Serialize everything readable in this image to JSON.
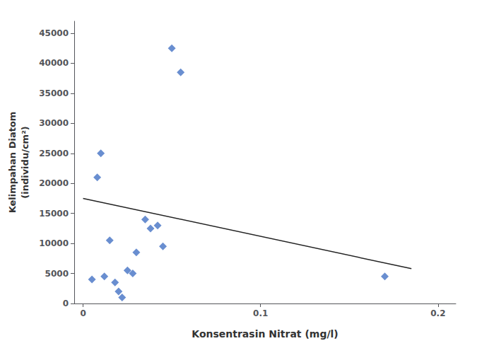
{
  "chart_data": {
    "type": "scatter",
    "xlabel": "Konsentrasin Nitrat (mg/l)",
    "ylabel": "Kelimpahan Diatom\n(individu/cm²)",
    "x": [
      0.005,
      0.008,
      0.01,
      0.012,
      0.015,
      0.018,
      0.02,
      0.022,
      0.025,
      0.028,
      0.03,
      0.035,
      0.038,
      0.042,
      0.045,
      0.05,
      0.055,
      0.17
    ],
    "values": [
      4000,
      21000,
      25000,
      4500,
      10500,
      3500,
      2000,
      1000,
      5500,
      5000,
      8500,
      14000,
      12500,
      13000,
      9500,
      42500,
      38500,
      4500
    ],
    "color": "#4472C4",
    "marker": "diamond",
    "trendline": {
      "type": "line",
      "x": [
        0.0,
        0.185
      ],
      "values": [
        17500,
        5800
      ],
      "color": "#222222",
      "line_style": "solid"
    },
    "xlim": [
      -0.005,
      0.21
    ],
    "ylim": [
      0,
      47000
    ],
    "xticks": [
      0,
      0.1,
      0.2
    ],
    "yticks": [
      0,
      5000,
      10000,
      15000,
      20000,
      25000,
      30000,
      35000,
      40000,
      45000
    ],
    "grid": false
  }
}
